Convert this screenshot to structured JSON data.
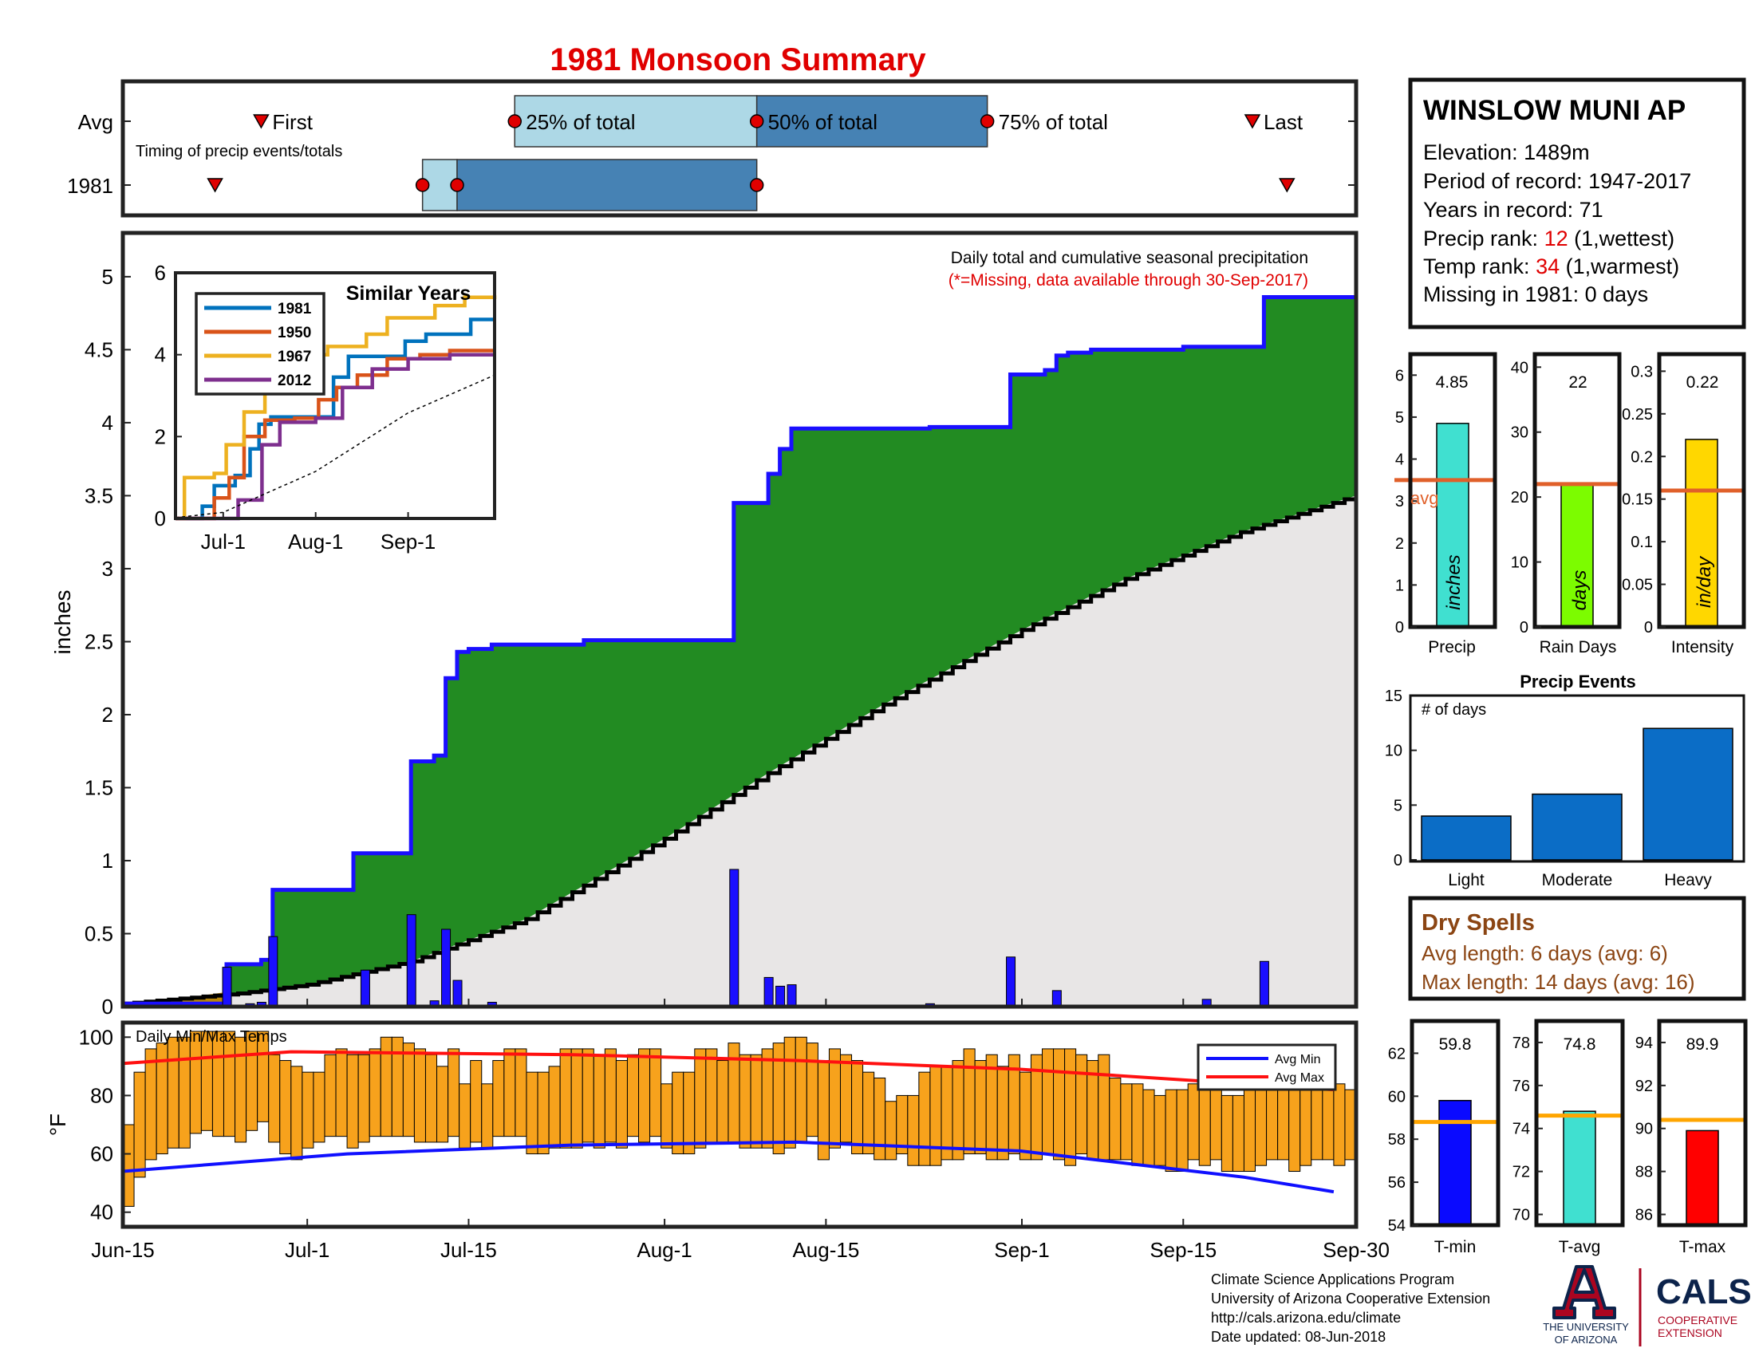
{
  "title": "1981 Monsoon Summary",
  "colors": {
    "title": "#e00000",
    "cum_obs": "#1a0fff",
    "cum_fill": "#228b22",
    "cum_avg_fill": "#e8e6e6",
    "daily_bar": "#1a0fff",
    "temp_bar": "#f7a21c",
    "avg_min": "#1010ff",
    "avg_max": "#ff1010",
    "marker": "#e00000",
    "q_light": "#add8e6",
    "q_dark": "#4682b4",
    "avg_line": "#e0602a",
    "dry": "#8b4513",
    "event_bar": "#0b6dc6",
    "tmin_bar": "#0a0aff",
    "tavg_bar": "#40e0d0",
    "tmax_bar": "#ff0000",
    "precip_bar": "#40e0d0",
    "raindays_bar": "#7cfc00",
    "intensity_bar": "#ffd700",
    "temp_avg_line": "#ffa500"
  },
  "timing_panel": {
    "row_avg_label": "Avg",
    "row_year_label": "1981",
    "caption": "Timing of precip events/totals",
    "first_label": "First",
    "last_label": "Last",
    "q25_label": "25% of total",
    "q50_label": "50% of total",
    "q75_label": "75% of total",
    "avg": {
      "first": "2021-06-27",
      "q25": "2021-07-19",
      "q50": "2021-08-09",
      "q75": "2021-08-29",
      "last": "2021-09-21"
    },
    "year": {
      "first": "2021-06-23",
      "q25": "2021-07-11",
      "q50": "2021-07-14",
      "q75": "2021-08-09",
      "last": "2021-09-24"
    }
  },
  "main_panel": {
    "annotation": "Daily total and cumulative seasonal precipitation",
    "missing_note": "(*=Missing, data available through 30-Sep-2017)",
    "ylabel": "inches",
    "yticks": [
      "0",
      "0.5",
      "1",
      "1.5",
      "2",
      "2.5",
      "3",
      "3.5",
      "4",
      "4.5",
      "5"
    ],
    "xticks": [
      "Jun-15",
      "Jul-1",
      "Jul-15",
      "Aug-1",
      "Aug-15",
      "Sep-1",
      "Sep-15",
      "Sep-30"
    ]
  },
  "inset": {
    "title": "Similar Years",
    "yticks": [
      "0",
      "2",
      "4",
      "6"
    ],
    "xticks": [
      "Jul-1",
      "Aug-1",
      "Sep-1"
    ],
    "legend": [
      "1981",
      "1950",
      "1967",
      "2012"
    ]
  },
  "temp_panel": {
    "label": "Daily Min/Max Temps",
    "ylabel": "°F",
    "yticks": [
      "40",
      "60",
      "80",
      "100"
    ],
    "legend_min": "Avg Min",
    "legend_max": "Avg Max"
  },
  "station": {
    "name": "WINSLOW MUNI AP",
    "elevation": "Elevation: 1489m",
    "period": "Period of record: 1947-2017",
    "years": "Years in record: 71",
    "precip_rank_label": "Precip rank: ",
    "precip_rank": "12",
    "precip_rank_note": " (1,wettest)",
    "temp_rank_label": "Temp rank: ",
    "temp_rank": "34",
    "temp_rank_note": " (1,warmest)",
    "missing": "Missing in 1981: 0 days"
  },
  "stat_bars": {
    "precip": {
      "value": "4.85",
      "unit": "inches",
      "label": "Precip",
      "avg_label": "avg",
      "yticks": [
        "0",
        "1",
        "2",
        "3",
        "4",
        "5",
        "6"
      ]
    },
    "raindays": {
      "value": "22",
      "unit": "days",
      "label": "Rain Days",
      "yticks": [
        "0",
        "10",
        "20",
        "30",
        "40"
      ]
    },
    "intensity": {
      "value": "0.22",
      "unit": "in/day",
      "label": "Intensity",
      "yticks": [
        "0",
        "0.05",
        "0.1",
        "0.15",
        "0.2",
        "0.25",
        "0.3"
      ]
    }
  },
  "precip_events": {
    "title": "Precip Events",
    "ylabel": "# of days",
    "yticks": [
      "0",
      "5",
      "10",
      "15"
    ],
    "categories": [
      "Light",
      "Moderate",
      "Heavy"
    ]
  },
  "dry_spells": {
    "title": "Dry Spells",
    "avg_length": "Avg length: 6 days (avg: 6)",
    "max_length": "Max length: 14 days (avg: 16)"
  },
  "temp_bars": {
    "tmin": {
      "value": "59.8",
      "label": "T-min",
      "yticks": [
        "54",
        "56",
        "58",
        "60",
        "62"
      ]
    },
    "tavg": {
      "value": "74.8",
      "label": "T-avg",
      "yticks": [
        "70",
        "72",
        "74",
        "76",
        "78"
      ]
    },
    "tmax": {
      "value": "89.9",
      "label": "T-max",
      "yticks": [
        "86",
        "88",
        "90",
        "92",
        "94"
      ]
    }
  },
  "footer": {
    "line1": "Climate Science Applications Program",
    "line2": "University of Arizona Cooperative Extension",
    "line3": "http://cals.arizona.edu/climate",
    "line4": " Date updated: 08-Jun-2018",
    "logo_ua1": "THE UNIVERSITY",
    "logo_ua2": "OF ARIZONA",
    "logo_cals": "CALS",
    "logo_coop1": "COOPERATIVE",
    "logo_coop2": "EXTENSION"
  },
  "chart_data": [
    {
      "type": "area",
      "title": "1981 Monsoon Summary",
      "ylabel": "inches",
      "x_range": [
        "2021-06-15",
        "2021-09-30"
      ],
      "ylim": [
        0,
        5.3
      ],
      "series": [
        {
          "name": "cumulative observed",
          "points": [
            [
              "2021-06-15",
              0.02
            ],
            [
              "2021-06-23",
              0.02
            ],
            [
              "2021-06-24",
              0.29
            ],
            [
              "2021-06-27",
              0.32
            ],
            [
              "2021-06-28",
              0.8
            ],
            [
              "2021-07-05",
              1.05
            ],
            [
              "2021-07-10",
              1.68
            ],
            [
              "2021-07-12",
              1.72
            ],
            [
              "2021-07-13",
              2.25
            ],
            [
              "2021-07-14",
              2.43
            ],
            [
              "2021-07-15",
              2.45
            ],
            [
              "2021-07-17",
              2.48
            ],
            [
              "2021-07-25",
              2.51
            ],
            [
              "2021-08-07",
              3.45
            ],
            [
              "2021-08-10",
              3.65
            ],
            [
              "2021-08-11",
              3.82
            ],
            [
              "2021-08-12",
              3.96
            ],
            [
              "2021-08-24",
              3.97
            ],
            [
              "2021-08-31",
              4.33
            ],
            [
              "2021-09-03",
              4.36
            ],
            [
              "2021-09-04",
              4.46
            ],
            [
              "2021-09-05",
              4.48
            ],
            [
              "2021-09-07",
              4.5
            ],
            [
              "2021-09-15",
              4.52
            ],
            [
              "2021-09-22",
              4.86
            ],
            [
              "2021-09-30",
              4.86
            ]
          ]
        },
        {
          "name": "cumulative average",
          "points": [
            [
              "2021-06-15",
              0.02
            ],
            [
              "2021-06-25",
              0.09
            ],
            [
              "2021-07-01",
              0.15
            ],
            [
              "2021-07-10",
              0.31
            ],
            [
              "2021-07-20",
              0.6
            ],
            [
              "2021-08-01",
              1.15
            ],
            [
              "2021-08-10",
              1.6
            ],
            [
              "2021-08-20",
              2.07
            ],
            [
              "2021-09-01",
              2.58
            ],
            [
              "2021-09-10",
              2.93
            ],
            [
              "2021-09-20",
              3.25
            ],
            [
              "2021-09-30",
              3.5
            ]
          ]
        }
      ],
      "daily_precip": [
        [
          "2021-06-24",
          0.27
        ],
        [
          "2021-06-26",
          0.02
        ],
        [
          "2021-06-27",
          0.03
        ],
        [
          "2021-06-28",
          0.48
        ],
        [
          "2021-07-06",
          0.25
        ],
        [
          "2021-07-10",
          0.63
        ],
        [
          "2021-07-12",
          0.04
        ],
        [
          "2021-07-13",
          0.53
        ],
        [
          "2021-07-14",
          0.18
        ],
        [
          "2021-07-17",
          0.03
        ],
        [
          "2021-07-25",
          0.01
        ],
        [
          "2021-08-07",
          0.94
        ],
        [
          "2021-08-10",
          0.2
        ],
        [
          "2021-08-11",
          0.14
        ],
        [
          "2021-08-12",
          0.15
        ],
        [
          "2021-08-24",
          0.02
        ],
        [
          "2021-08-31",
          0.34
        ],
        [
          "2021-09-03",
          0.01
        ],
        [
          "2021-09-04",
          0.11
        ],
        [
          "2021-09-07",
          0.01
        ],
        [
          "2021-09-17",
          0.05
        ],
        [
          "2021-09-22",
          0.31
        ]
      ]
    },
    {
      "type": "line",
      "title": "Similar Years",
      "ylim": [
        0,
        6
      ],
      "x_range": [
        "2021-06-15",
        "2021-09-30"
      ],
      "series": [
        {
          "name": "1981",
          "points": [
            [
              "2021-06-15",
              0
            ],
            [
              "2021-06-23",
              0
            ],
            [
              "2021-06-24",
              0.3
            ],
            [
              "2021-06-28",
              0.8
            ],
            [
              "2021-07-05",
              1.05
            ],
            [
              "2021-07-10",
              1.7
            ],
            [
              "2021-07-13",
              2.3
            ],
            [
              "2021-07-17",
              2.48
            ],
            [
              "2021-08-07",
              3.45
            ],
            [
              "2021-08-12",
              3.96
            ],
            [
              "2021-08-31",
              4.33
            ],
            [
              "2021-09-07",
              4.5
            ],
            [
              "2021-09-22",
              4.86
            ],
            [
              "2021-09-30",
              4.86
            ]
          ]
        },
        {
          "name": "1950",
          "points": [
            [
              "2021-06-15",
              0
            ],
            [
              "2021-06-26",
              0
            ],
            [
              "2021-06-28",
              0.5
            ],
            [
              "2021-07-03",
              1.0
            ],
            [
              "2021-07-08",
              2.0
            ],
            [
              "2021-07-15",
              2.4
            ],
            [
              "2021-07-25",
              2.45
            ],
            [
              "2021-08-02",
              2.9
            ],
            [
              "2021-08-08",
              3.2
            ],
            [
              "2021-08-15",
              3.5
            ],
            [
              "2021-08-25",
              3.9
            ],
            [
              "2021-09-05",
              4.0
            ],
            [
              "2021-09-15",
              4.1
            ],
            [
              "2021-09-30",
              4.1
            ]
          ]
        },
        {
          "name": "1967",
          "points": [
            [
              "2021-06-15",
              0
            ],
            [
              "2021-06-18",
              1.0
            ],
            [
              "2021-06-28",
              1.1
            ],
            [
              "2021-07-02",
              1.8
            ],
            [
              "2021-07-08",
              2.6
            ],
            [
              "2021-07-15",
              3.9
            ],
            [
              "2021-07-25",
              4.0
            ],
            [
              "2021-08-05",
              4.2
            ],
            [
              "2021-08-18",
              4.5
            ],
            [
              "2021-08-25",
              4.9
            ],
            [
              "2021-09-10",
              5.2
            ],
            [
              "2021-09-20",
              5.4
            ],
            [
              "2021-09-30",
              5.45
            ]
          ]
        },
        {
          "name": "2012",
          "points": [
            [
              "2021-06-15",
              0
            ],
            [
              "2021-07-05",
              0
            ],
            [
              "2021-07-06",
              0.45
            ],
            [
              "2021-07-12",
              0.45
            ],
            [
              "2021-07-14",
              1.8
            ],
            [
              "2021-07-20",
              2.35
            ],
            [
              "2021-08-01",
              2.45
            ],
            [
              "2021-08-10",
              3.2
            ],
            [
              "2021-08-20",
              3.65
            ],
            [
              "2021-09-01",
              3.9
            ],
            [
              "2021-09-15",
              4.0
            ],
            [
              "2021-09-30",
              4.0
            ]
          ]
        },
        {
          "name": "average",
          "points": [
            [
              "2021-06-15",
              0.02
            ],
            [
              "2021-07-01",
              0.15
            ],
            [
              "2021-08-01",
              1.15
            ],
            [
              "2021-09-01",
              2.58
            ],
            [
              "2021-09-30",
              3.5
            ]
          ]
        }
      ]
    },
    {
      "type": "bar",
      "title": "Daily Min/Max Temps",
      "ylabel": "°F",
      "ylim": [
        35,
        105
      ],
      "start_date": "2021-06-15",
      "min_values": [
        42,
        52,
        58,
        60,
        62,
        62,
        67,
        68,
        66,
        66,
        64,
        68,
        71,
        64,
        60,
        58,
        62,
        64,
        66,
        66,
        62,
        64,
        66,
        66,
        66,
        66,
        64,
        64,
        64,
        66,
        62,
        64,
        62,
        66,
        66,
        66,
        60,
        60,
        62,
        62,
        62,
        64,
        62,
        64,
        62,
        66,
        64,
        66,
        62,
        60,
        60,
        62,
        64,
        64,
        64,
        62,
        62,
        62,
        60,
        62,
        64,
        66,
        58,
        62,
        64,
        60,
        60,
        58,
        58,
        60,
        56,
        56,
        56,
        58,
        58,
        60,
        60,
        58,
        58,
        60,
        58,
        58,
        60,
        58,
        56,
        60,
        58,
        58,
        58,
        58,
        56,
        56,
        56,
        54,
        54,
        58,
        56,
        58,
        54,
        54,
        54,
        56,
        58,
        58,
        54,
        56,
        58,
        58,
        56,
        58
      ],
      "max_values": [
        70,
        88,
        96,
        98,
        100,
        100,
        102,
        102,
        102,
        102,
        100,
        102,
        102,
        94,
        92,
        90,
        88,
        88,
        94,
        96,
        94,
        94,
        96,
        100,
        100,
        98,
        96,
        94,
        90,
        96,
        84,
        92,
        84,
        92,
        96,
        96,
        88,
        88,
        90,
        96,
        96,
        96,
        94,
        96,
        92,
        94,
        96,
        96,
        84,
        88,
        88,
        96,
        96,
        92,
        98,
        94,
        94,
        96,
        98,
        100,
        100,
        98,
        92,
        96,
        94,
        92,
        88,
        86,
        78,
        80,
        80,
        88,
        90,
        90,
        92,
        96,
        92,
        94,
        90,
        94,
        88,
        94,
        96,
        96,
        96,
        94,
        92,
        94,
        86,
        84,
        84,
        82,
        80,
        82,
        82,
        84,
        82,
        84,
        80,
        80,
        82,
        82,
        84,
        82,
        82,
        82,
        84,
        82,
        84,
        82
      ],
      "avg_min": [
        [
          0,
          54
        ],
        [
          10,
          57
        ],
        [
          20,
          60
        ],
        [
          40,
          63
        ],
        [
          60,
          64
        ],
        [
          80,
          61
        ],
        [
          100,
          52
        ],
        [
          108,
          47
        ]
      ],
      "avg_max": [
        [
          0,
          91
        ],
        [
          15,
          95
        ],
        [
          40,
          94
        ],
        [
          60,
          92
        ],
        [
          80,
          89
        ],
        [
          100,
          84
        ],
        [
          108,
          82
        ]
      ]
    },
    {
      "type": "bar",
      "title": "Precip",
      "categories": [
        "Precip"
      ],
      "values": [
        4.85
      ],
      "avg": 3.5,
      "ylim": [
        0,
        6.5
      ]
    },
    {
      "type": "bar",
      "title": "Rain Days",
      "categories": [
        "Rain Days"
      ],
      "values": [
        22
      ],
      "avg": 22,
      "ylim": [
        0,
        42
      ]
    },
    {
      "type": "bar",
      "title": "Intensity",
      "categories": [
        "Intensity"
      ],
      "values": [
        0.22
      ],
      "avg": 0.16,
      "ylim": [
        0,
        0.32
      ]
    },
    {
      "type": "bar",
      "title": "Precip Events",
      "categories": [
        "Light",
        "Moderate",
        "Heavy"
      ],
      "values": [
        4,
        6,
        12
      ],
      "ylabel": "# of days",
      "ylim": [
        0,
        15
      ]
    },
    {
      "type": "bar",
      "title": "T-min",
      "categories": [
        "T-min"
      ],
      "values": [
        59.8
      ],
      "avg": 58.8,
      "ylim": [
        54,
        63.5
      ]
    },
    {
      "type": "bar",
      "title": "T-avg",
      "categories": [
        "T-avg"
      ],
      "values": [
        74.8
      ],
      "avg": 74.6,
      "ylim": [
        69.5,
        79
      ]
    },
    {
      "type": "bar",
      "title": "T-max",
      "categories": [
        "T-max"
      ],
      "values": [
        89.9
      ],
      "avg": 90.4,
      "ylim": [
        85.5,
        95
      ]
    }
  ]
}
